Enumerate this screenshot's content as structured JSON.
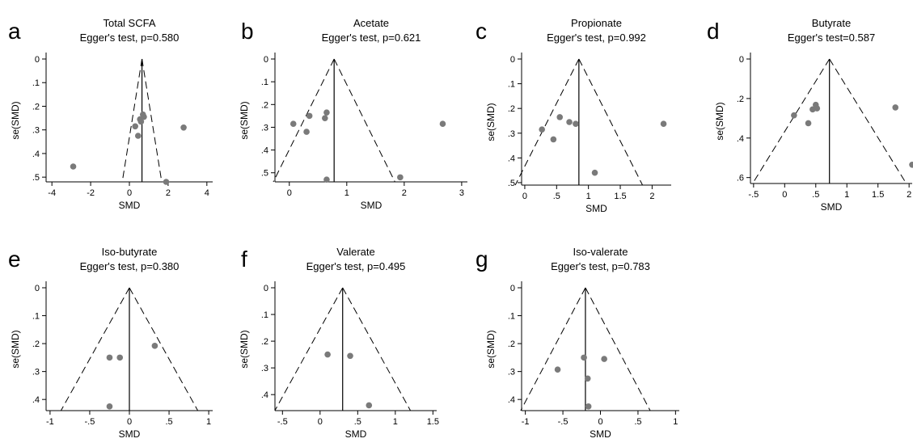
{
  "chart_data": [
    {
      "type": "scatter",
      "panel_label": "a",
      "title": "Total SCFA",
      "subtitle": "Egger's test, p=0.580",
      "xlabel": "SMD",
      "ylabel": "se(SMD)",
      "xlim": [
        -4.3,
        4.3
      ],
      "ylim": [
        0,
        0.52
      ],
      "y_reversed": true,
      "xticks": [
        -4,
        -2,
        0,
        2,
        4
      ],
      "xtick_labels": [
        "-4",
        "-2",
        "0",
        "2",
        "4"
      ],
      "yticks": [
        0,
        0.1,
        0.2,
        0.3,
        0.4,
        0.5
      ],
      "ytick_labels": [
        "0",
        ".1",
        ".2",
        ".3",
        ".4",
        ".5"
      ],
      "pooled_smd": 0.65,
      "points": [
        {
          "x": 0.3,
          "y": 0.285
        },
        {
          "x": 0.45,
          "y": 0.325
        },
        {
          "x": 0.55,
          "y": 0.255
        },
        {
          "x": 0.6,
          "y": 0.265
        },
        {
          "x": 0.7,
          "y": 0.235
        },
        {
          "x": 0.75,
          "y": 0.245
        },
        {
          "x": 2.8,
          "y": 0.29
        },
        {
          "x": -2.9,
          "y": 0.455
        },
        {
          "x": 1.9,
          "y": 0.52
        }
      ]
    },
    {
      "type": "scatter",
      "panel_label": "b",
      "title": "Acetate",
      "subtitle": "Egger's test, p=0.621",
      "xlabel": "SMD",
      "ylabel": "se(SMD)",
      "xlim": [
        -0.25,
        3.1
      ],
      "ylim": [
        0,
        0.54
      ],
      "y_reversed": true,
      "xticks": [
        0,
        1,
        2,
        3
      ],
      "xtick_labels": [
        "0",
        "1",
        "2",
        "3"
      ],
      "yticks": [
        0,
        0.1,
        0.2,
        0.3,
        0.4,
        0.5
      ],
      "ytick_labels": [
        "0",
        ".1",
        ".2",
        ".3",
        ".4",
        ".5"
      ],
      "pooled_smd": 0.78,
      "points": [
        {
          "x": 0.07,
          "y": 0.285
        },
        {
          "x": 0.3,
          "y": 0.32
        },
        {
          "x": 0.35,
          "y": 0.25
        },
        {
          "x": 0.62,
          "y": 0.26
        },
        {
          "x": 0.65,
          "y": 0.235
        },
        {
          "x": 2.67,
          "y": 0.285
        },
        {
          "x": 0.65,
          "y": 0.53
        },
        {
          "x": 1.93,
          "y": 0.52
        }
      ]
    },
    {
      "type": "scatter",
      "panel_label": "c",
      "title": "Propionate",
      "subtitle": "Egger's test, p=0.992",
      "xlabel": "SMD",
      "ylabel": "se(SMD)",
      "xlim": [
        -0.05,
        2.3
      ],
      "ylim": [
        0,
        0.51
      ],
      "y_reversed": true,
      "xticks": [
        0,
        0.5,
        1,
        1.5,
        2
      ],
      "xtick_labels": [
        "0",
        ".5",
        "1",
        "1.5",
        "2"
      ],
      "yticks": [
        0,
        0.1,
        0.2,
        0.3,
        0.4,
        0.5
      ],
      "ytick_labels": [
        "0",
        ".1",
        ".2",
        ".3",
        ".4",
        ".5"
      ],
      "pooled_smd": 0.85,
      "points": [
        {
          "x": 0.27,
          "y": 0.285
        },
        {
          "x": 0.45,
          "y": 0.325
        },
        {
          "x": 0.55,
          "y": 0.235
        },
        {
          "x": 0.7,
          "y": 0.255
        },
        {
          "x": 0.8,
          "y": 0.262
        },
        {
          "x": 2.18,
          "y": 0.262
        },
        {
          "x": 1.1,
          "y": 0.46
        }
      ]
    },
    {
      "type": "scatter",
      "panel_label": "d",
      "title": "Butyrate",
      "subtitle": "Egger's test=0.587",
      "xlabel": "SMD",
      "ylabel": "se(SMD)",
      "xlim": [
        -0.55,
        2.05
      ],
      "ylim": [
        0,
        0.63
      ],
      "y_reversed": true,
      "xticks": [
        -0.5,
        0,
        0.5,
        1,
        1.5,
        2
      ],
      "xtick_labels": [
        "-.5",
        "0",
        ".5",
        "1",
        "1.5",
        "2"
      ],
      "yticks": [
        0,
        0.2,
        0.4,
        0.6
      ],
      "ytick_labels": [
        "0",
        ".2",
        ".4",
        ".6"
      ],
      "pooled_smd": 0.72,
      "points": [
        {
          "x": 0.15,
          "y": 0.285
        },
        {
          "x": 0.38,
          "y": 0.325
        },
        {
          "x": 0.45,
          "y": 0.255
        },
        {
          "x": 0.5,
          "y": 0.232
        },
        {
          "x": 0.52,
          "y": 0.25
        },
        {
          "x": 1.78,
          "y": 0.245
        },
        {
          "x": 2.05,
          "y": 0.535
        }
      ]
    },
    {
      "type": "scatter",
      "panel_label": "e",
      "title": "Iso-butyrate",
      "subtitle": "Egger's test, p=0.380",
      "xlabel": "SMD",
      "ylabel": "se(SMD)",
      "xlim": [
        -1.05,
        1.05
      ],
      "ylim": [
        0,
        0.44
      ],
      "y_reversed": true,
      "xticks": [
        -1,
        -0.5,
        0,
        0.5,
        1
      ],
      "xtick_labels": [
        "-1",
        "-.5",
        "0",
        ".5",
        "1"
      ],
      "yticks": [
        0,
        0.1,
        0.2,
        0.3,
        0.4
      ],
      "ytick_labels": [
        "0",
        ".1",
        ".2",
        ".3",
        ".4"
      ],
      "pooled_smd": 0.0,
      "points": [
        {
          "x": -0.25,
          "y": 0.25
        },
        {
          "x": -0.12,
          "y": 0.25
        },
        {
          "x": 0.32,
          "y": 0.208
        },
        {
          "x": -0.25,
          "y": 0.425
        }
      ]
    },
    {
      "type": "scatter",
      "panel_label": "f",
      "title": "Valerate",
      "subtitle": "Egger's test, p=0.495",
      "xlabel": "SMD",
      "ylabel": "se(SMD)",
      "xlim": [
        -0.6,
        1.55
      ],
      "ylim": [
        0,
        0.46
      ],
      "y_reversed": true,
      "xticks": [
        -0.5,
        0,
        0.5,
        1,
        1.5
      ],
      "xtick_labels": [
        "-.5",
        "0",
        ".5",
        "1",
        "1.5"
      ],
      "yticks": [
        0,
        0.1,
        0.2,
        0.3,
        0.4
      ],
      "ytick_labels": [
        "0",
        ".1",
        ".2",
        ".3",
        ".4"
      ],
      "pooled_smd": 0.3,
      "points": [
        {
          "x": 0.1,
          "y": 0.25
        },
        {
          "x": 0.4,
          "y": 0.255
        },
        {
          "x": 0.65,
          "y": 0.44
        }
      ]
    },
    {
      "type": "scatter",
      "panel_label": "g",
      "title": "Iso-valerate",
      "subtitle": "Egger's test, p=0.783",
      "xlabel": "SMD",
      "ylabel": "se(SMD)",
      "xlim": [
        -1.05,
        1.05
      ],
      "ylim": [
        0,
        0.44
      ],
      "y_reversed": true,
      "xticks": [
        -1,
        -0.5,
        0,
        0.5,
        1
      ],
      "xtick_labels": [
        "-1",
        "-.5",
        "0",
        ".5",
        "1"
      ],
      "yticks": [
        0,
        0.1,
        0.2,
        0.3,
        0.4
      ],
      "ytick_labels": [
        "0",
        ".1",
        ".2",
        ".3",
        ".4"
      ],
      "pooled_smd": -0.2,
      "points": [
        {
          "x": -0.57,
          "y": 0.293
        },
        {
          "x": -0.22,
          "y": 0.25
        },
        {
          "x": 0.05,
          "y": 0.255
        },
        {
          "x": -0.17,
          "y": 0.325
        },
        {
          "x": -0.16,
          "y": 0.425
        }
      ]
    }
  ]
}
